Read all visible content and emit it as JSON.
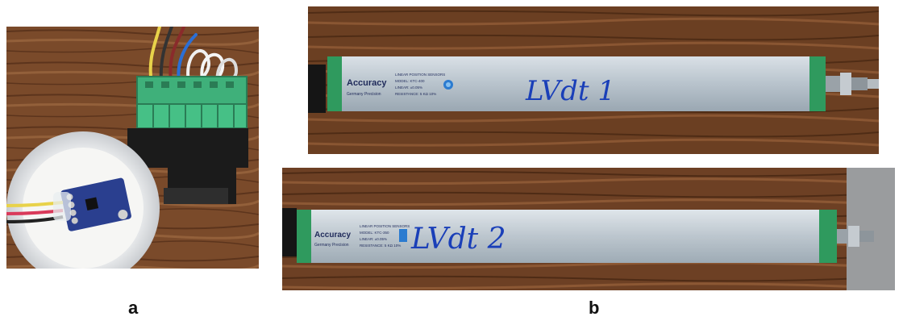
{
  "captions": {
    "a": "a",
    "b": "b"
  },
  "sensor_1": {
    "brand": "Accuracy",
    "brand_sub": "Germany Precision",
    "spec_line_1": "LINEAR POSITION SENSORS",
    "spec_line_2": "MODEL: KTC-400",
    "spec_line_3": "LINEAR: ±0.05%",
    "spec_line_4": "RESISTANCE: 5 KΩ 10%",
    "handwritten_label": "LVdt 1"
  },
  "sensor_2": {
    "brand": "Accuracy",
    "brand_sub": "Germany Precision",
    "spec_line_1": "LINEAR POSITION SENSORS",
    "spec_line_2": "MODEL: KTC-350",
    "spec_line_3": "LINEAR: ±0.05%",
    "spec_line_4": "RESISTANCE: 5 KΩ 10%",
    "handwritten_label": "LVdt 2"
  },
  "colors": {
    "wood": "#7a4a2a",
    "terminal_green": "#3fb07a",
    "sensor_aluminum": "#b8c3cc",
    "end_cap_green": "#2f9a5e",
    "ink_blue": "#1a3fb8",
    "board_blue": "#2a3f8f"
  }
}
